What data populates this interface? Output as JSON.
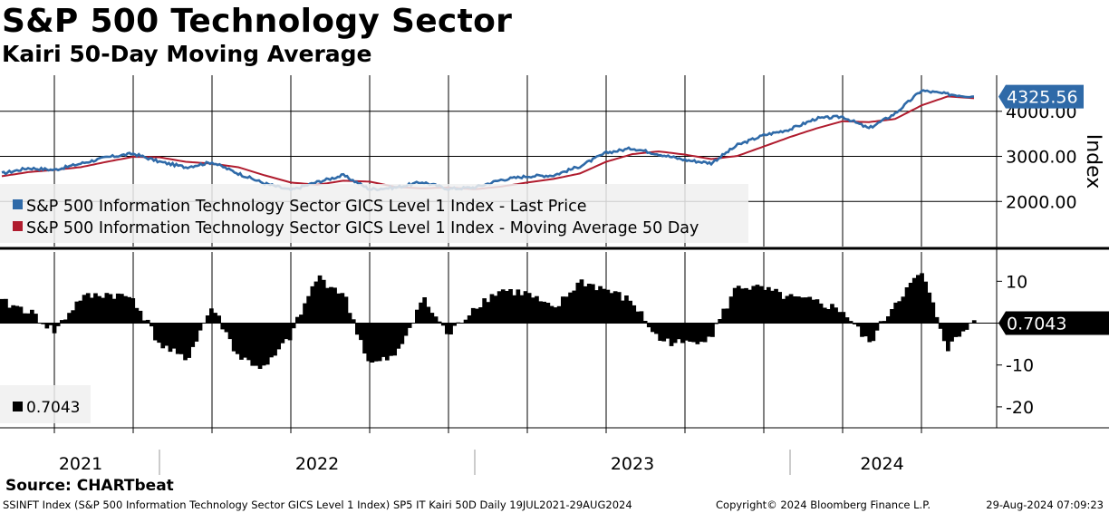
{
  "chart_title": "S&P 500 Technology Sector",
  "chart_subtitle": "Kairi 50-Day Moving Average",
  "colors": {
    "price": "#2f6aa8",
    "ma": "#b01c2e",
    "kairi": "#000000",
    "grid": "#000000"
  },
  "chart_data": [
    {
      "type": "line",
      "title": "S&P 500 Technology Sector",
      "ylabel": "Index",
      "ylim": [
        1000,
        4800
      ],
      "yticks": [
        "2000.00",
        "3000.00",
        "4000.00"
      ],
      "ytick_values": [
        2000,
        3000,
        4000
      ],
      "last_value_label": "4325.56",
      "grid": true,
      "legend_position": "bottom-left",
      "x_dates": [
        "2021-07",
        "2021-08",
        "2021-09",
        "2021-10",
        "2021-11",
        "2021-12",
        "2022-01",
        "2022-02",
        "2022-03",
        "2022-04",
        "2022-05",
        "2022-06",
        "2022-07",
        "2022-08",
        "2022-09",
        "2022-10",
        "2022-11",
        "2022-12",
        "2023-01",
        "2023-02",
        "2023-03",
        "2023-04",
        "2023-05",
        "2023-06",
        "2023-07",
        "2023-08",
        "2023-09",
        "2023-10",
        "2023-11",
        "2023-12",
        "2024-01",
        "2024-02",
        "2024-03",
        "2024-04",
        "2024-05",
        "2024-06",
        "2024-07",
        "2024-08"
      ],
      "series": [
        {
          "name": "S&P 500 Information Technology Sector GICS Level 1 Index - Last Price",
          "values": [
            2620,
            2740,
            2700,
            2840,
            2980,
            3060,
            2880,
            2760,
            2870,
            2620,
            2400,
            2250,
            2430,
            2580,
            2270,
            2310,
            2430,
            2280,
            2310,
            2480,
            2560,
            2580,
            2780,
            3080,
            3180,
            3050,
            2920,
            2850,
            3250,
            3470,
            3600,
            3840,
            3880,
            3620,
            3950,
            4460,
            4380,
            4325.56
          ]
        },
        {
          "name": "S&P 500 Information Technology Sector GICS Level 1 Index - Moving Average 50 Day",
          "values": [
            2560,
            2650,
            2700,
            2760,
            2880,
            2990,
            2980,
            2880,
            2840,
            2760,
            2580,
            2420,
            2370,
            2460,
            2440,
            2320,
            2290,
            2310,
            2270,
            2330,
            2420,
            2500,
            2620,
            2880,
            3050,
            3110,
            3040,
            2940,
            3010,
            3220,
            3430,
            3620,
            3780,
            3760,
            3830,
            4130,
            4330,
            4290
          ]
        }
      ]
    },
    {
      "type": "bar",
      "title": "SP5 IT Kairi 50D",
      "ylim": [
        -25,
        17
      ],
      "yticks": [
        "10",
        "0",
        "-10",
        "-20"
      ],
      "ytick_values": [
        10,
        0,
        -10,
        -20
      ],
      "last_value_label": "0.7043",
      "legend_value": "0.7043",
      "x_dates": [
        "2021-07",
        "2021-08",
        "2021-09",
        "2021-10",
        "2021-11",
        "2021-12",
        "2022-01",
        "2022-02",
        "2022-03",
        "2022-04",
        "2022-05",
        "2022-06",
        "2022-07",
        "2022-08",
        "2022-09",
        "2022-10",
        "2022-11",
        "2022-12",
        "2023-01",
        "2023-02",
        "2023-03",
        "2023-04",
        "2023-05",
        "2023-06",
        "2023-07",
        "2023-08",
        "2023-09",
        "2023-10",
        "2023-11",
        "2023-12",
        "2024-01",
        "2024-02",
        "2024-03",
        "2024-04",
        "2024-05",
        "2024-06",
        "2024-07",
        "2024-08"
      ],
      "values": [
        5,
        3,
        -2,
        6,
        7,
        6,
        -5,
        -9,
        4,
        -8,
        -11,
        -3,
        11,
        7,
        -10,
        -8,
        6,
        -3,
        4,
        8,
        7,
        3,
        10,
        8,
        5,
        -4,
        -5,
        -3,
        9,
        8,
        6,
        5,
        3,
        -5,
        5,
        12,
        -6,
        0.7043
      ]
    }
  ],
  "x_axis": {
    "year_labels": [
      "2021",
      "2022",
      "2023",
      "2024"
    ]
  },
  "source_label": "Source: CHARTbeat",
  "footer": {
    "left": "SSINFT Index (S&P 500 Information Technology Sector GICS Level 1 Index) SP5 IT Kairi 50D  Daily 19JUL2021-29AUG2024",
    "middle": "Copyright© 2024 Bloomberg Finance L.P.",
    "right": "29-Aug-2024 07:09:23"
  }
}
